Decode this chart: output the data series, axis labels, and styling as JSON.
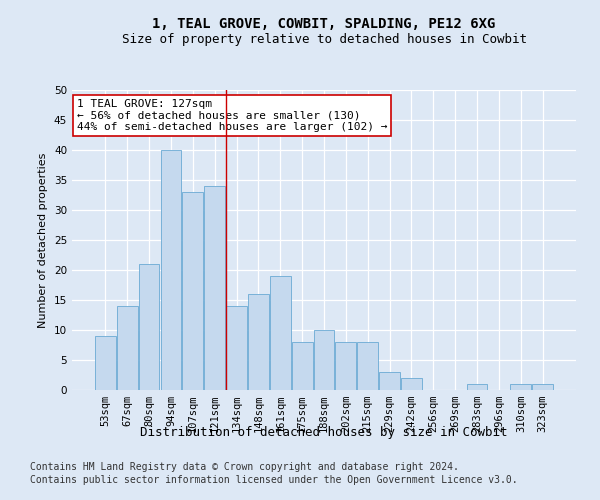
{
  "title": "1, TEAL GROVE, COWBIT, SPALDING, PE12 6XG",
  "subtitle": "Size of property relative to detached houses in Cowbit",
  "xlabel": "Distribution of detached houses by size in Cowbit",
  "ylabel": "Number of detached properties",
  "bin_labels": [
    "53sqm",
    "67sqm",
    "80sqm",
    "94sqm",
    "107sqm",
    "121sqm",
    "134sqm",
    "148sqm",
    "161sqm",
    "175sqm",
    "188sqm",
    "202sqm",
    "215sqm",
    "229sqm",
    "242sqm",
    "256sqm",
    "269sqm",
    "283sqm",
    "296sqm",
    "310sqm",
    "323sqm"
  ],
  "bar_values": [
    9,
    14,
    21,
    40,
    33,
    34,
    14,
    16,
    19,
    8,
    10,
    8,
    8,
    3,
    2,
    0,
    0,
    1,
    0,
    1,
    1
  ],
  "bar_color": "#c5d9ee",
  "bar_edge_color": "#6aaad4",
  "background_color": "#dde8f5",
  "grid_color": "#ffffff",
  "vline_color": "#cc0000",
  "vline_x_index": 5,
  "annotation_text": "1 TEAL GROVE: 127sqm\n← 56% of detached houses are smaller (130)\n44% of semi-detached houses are larger (102) →",
  "annotation_box_color": "#ffffff",
  "annotation_box_edge": "#cc0000",
  "ylim_max": 50,
  "yticks": [
    0,
    5,
    10,
    15,
    20,
    25,
    30,
    35,
    40,
    45,
    50
  ],
  "footer_line1": "Contains HM Land Registry data © Crown copyright and database right 2024.",
  "footer_line2": "Contains public sector information licensed under the Open Government Licence v3.0.",
  "title_fontsize": 10,
  "subtitle_fontsize": 9,
  "xlabel_fontsize": 9,
  "ylabel_fontsize": 8,
  "tick_fontsize": 7.5,
  "annotation_fontsize": 8,
  "footer_fontsize": 7
}
